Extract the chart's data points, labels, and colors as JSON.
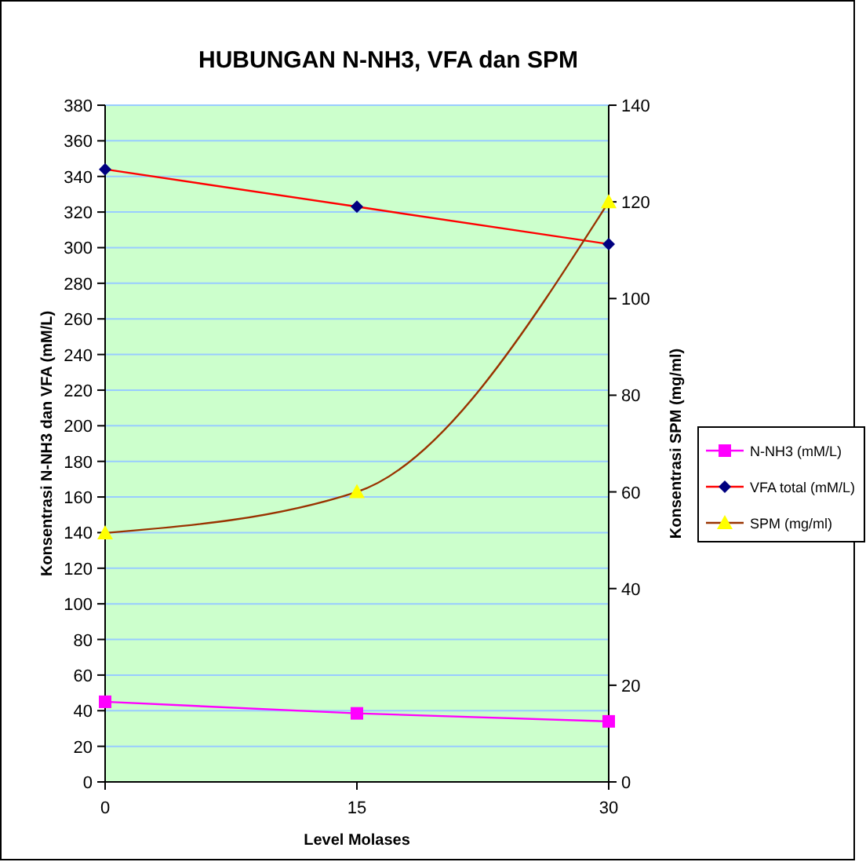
{
  "chart_data": {
    "type": "line",
    "title": "HUBUNGAN N-NH3, VFA dan SPM",
    "xlabel": "Level Molases",
    "ylabel": "Konsentrasi N-NH3 dan VFA (mM/L)",
    "y2label": "Konsentrasi SPM (mg/ml)",
    "x": [
      0,
      15,
      30
    ],
    "xlim": [
      0,
      30
    ],
    "xticks": [
      0,
      15,
      30
    ],
    "ylim": [
      0,
      380
    ],
    "yticks": [
      0,
      20,
      40,
      60,
      80,
      100,
      120,
      140,
      160,
      180,
      200,
      220,
      240,
      260,
      280,
      300,
      320,
      340,
      360,
      380
    ],
    "y2lim": [
      0,
      140
    ],
    "y2ticks": [
      0,
      20,
      40,
      60,
      80,
      100,
      120,
      140
    ],
    "grid": "y",
    "legend": "right",
    "series": [
      {
        "name": "N-NH3 (mM/L)",
        "color": "#ff00ff",
        "colors": [
          "#ff00ff",
          "#ff00ff",
          "#ff00ff"
        ],
        "marker": "square",
        "values": [
          45,
          38.5,
          34
        ]
      },
      {
        "name": "VFA total (mM/L)",
        "color": "#ff0000",
        "colors": [
          "#000080",
          "#000080",
          "#000080"
        ],
        "marker": "diamond",
        "values": [
          344,
          323,
          302
        ]
      },
      {
        "name": "SPM (mg/ml)",
        "color": "#993300",
        "colors": [
          "#ffff00",
          "#ffff00",
          "#ffff00"
        ],
        "marker": "triangle",
        "axis": "y2",
        "values": [
          51.5,
          60,
          120
        ]
      }
    ]
  }
}
